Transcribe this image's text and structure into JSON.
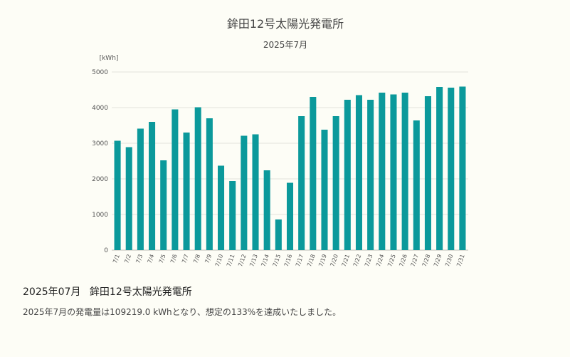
{
  "chart_data": {
    "type": "bar",
    "title": "鉾田12号太陽光発電所",
    "subtitle": "2025年7月",
    "ylabel": "[kWh]",
    "xlabel": "",
    "ylim": [
      0,
      5000
    ],
    "yticks": [
      0,
      1000,
      2000,
      3000,
      4000,
      5000
    ],
    "grid": true,
    "bar_color": "#0b999b",
    "categories": [
      "7/1",
      "7/2",
      "7/3",
      "7/4",
      "7/5",
      "7/6",
      "7/7",
      "7/8",
      "7/9",
      "7/10",
      "7/11",
      "7/12",
      "7/13",
      "7/14",
      "7/15",
      "7/16",
      "7/17",
      "7/18",
      "7/19",
      "7/20",
      "7/21",
      "7/22",
      "7/23",
      "7/24",
      "7/25",
      "7/26",
      "7/27",
      "7/28",
      "7/29",
      "7/30",
      "7/31"
    ],
    "values": [
      3070,
      2890,
      3410,
      3600,
      2520,
      3950,
      3300,
      4010,
      3700,
      2370,
      1940,
      3210,
      3250,
      2240,
      860,
      1890,
      3760,
      4300,
      3380,
      3760,
      4220,
      4350,
      4220,
      4420,
      4370,
      4420,
      3640,
      4320,
      4580,
      4560,
      4590
    ]
  },
  "summary": {
    "period": "2025年07月",
    "station": "鉾田12号太陽光発電所",
    "text": "2025年7月の発電量は109219.0 kWhとなり、想定の133%を達成いたしました。"
  }
}
